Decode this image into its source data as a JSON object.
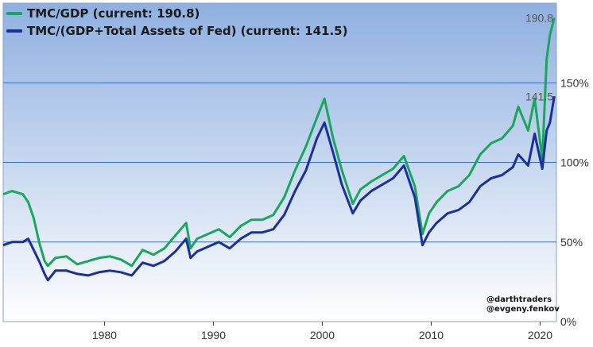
{
  "chart_data": {
    "type": "line",
    "title": "",
    "xlabel": "",
    "ylabel": "",
    "xlim": [
      1970.7,
      2021.5
    ],
    "ylim": [
      0,
      200
    ],
    "x_ticks": [
      1980,
      1990,
      2000,
      2010,
      2020
    ],
    "y_ticks": [
      {
        "value": 0,
        "label": "0%"
      },
      {
        "value": 50,
        "label": "50%"
      },
      {
        "value": 100,
        "label": "100%"
      },
      {
        "value": 150,
        "label": "150%"
      }
    ],
    "grid": "horizontal",
    "legend_position": "top-left",
    "background_gradient": [
      "#8fb0e0",
      "#ffffff"
    ],
    "series": [
      {
        "name": "TMC/GDP (current: 190.8)",
        "color": "#1aa65c",
        "end_label": "190.8",
        "x": [
          1970.7,
          1971.5,
          1972.5,
          1973.0,
          1973.5,
          1974.0,
          1974.5,
          1974.8,
          1975.5,
          1976.5,
          1977.5,
          1978.5,
          1979.5,
          1980.5,
          1981.5,
          1982.5,
          1983.5,
          1984.5,
          1985.5,
          1986.5,
          1987.5,
          1987.9,
          1988.5,
          1989.5,
          1990.5,
          1991.5,
          1992.5,
          1993.5,
          1994.5,
          1995.5,
          1996.5,
          1997.5,
          1998.5,
          1999.5,
          2000.2,
          2001.0,
          2001.8,
          2002.8,
          2003.5,
          2004.5,
          2005.5,
          2006.5,
          2007.5,
          2008.5,
          2009.2,
          2009.8,
          2010.5,
          2011.5,
          2012.5,
          2013.5,
          2014.5,
          2015.5,
          2016.5,
          2017.5,
          2018.0,
          2018.9,
          2019.5,
          2020.2,
          2020.6,
          2020.9,
          2021.3
        ],
        "values": [
          80,
          82,
          80,
          75,
          65,
          50,
          38,
          35,
          40,
          41,
          36,
          38,
          40,
          41,
          39,
          35,
          45,
          42,
          46,
          54,
          62,
          46,
          52,
          55,
          58,
          53,
          60,
          64,
          64,
          67,
          78,
          95,
          110,
          128,
          140,
          115,
          95,
          74,
          83,
          88,
          92,
          96,
          104,
          85,
          55,
          68,
          75,
          82,
          85,
          92,
          105,
          112,
          115,
          123,
          135,
          120,
          140,
          102,
          165,
          180,
          190.8
        ]
      },
      {
        "name": "TMC/(GDP+Total Assets of Fed) (current: 141.5)",
        "color": "#1a2fa0",
        "end_label": "141.5",
        "x": [
          1970.7,
          1971.5,
          1972.5,
          1973.0,
          1973.5,
          1974.0,
          1974.5,
          1974.8,
          1975.5,
          1976.5,
          1977.5,
          1978.5,
          1979.5,
          1980.5,
          1981.5,
          1982.5,
          1983.5,
          1984.5,
          1985.5,
          1986.5,
          1987.5,
          1987.9,
          1988.5,
          1989.5,
          1990.5,
          1991.5,
          1992.5,
          1993.5,
          1994.5,
          1995.5,
          1996.5,
          1997.5,
          1998.5,
          1999.5,
          2000.2,
          2001.0,
          2001.8,
          2002.8,
          2003.5,
          2004.5,
          2005.5,
          2006.5,
          2007.5,
          2008.5,
          2009.2,
          2009.8,
          2010.5,
          2011.5,
          2012.5,
          2013.5,
          2014.5,
          2015.5,
          2016.5,
          2017.5,
          2018.0,
          2018.9,
          2019.5,
          2020.2,
          2020.6,
          2020.9,
          2021.3
        ],
        "values": [
          48,
          50,
          50,
          52,
          45,
          38,
          30,
          26,
          32,
          32,
          30,
          29,
          31,
          32,
          31,
          29,
          37,
          35,
          38,
          44,
          52,
          40,
          44,
          47,
          50,
          46,
          52,
          56,
          56,
          58,
          67,
          82,
          95,
          115,
          125,
          106,
          86,
          68,
          76,
          82,
          86,
          90,
          98,
          78,
          48,
          56,
          62,
          68,
          70,
          75,
          85,
          90,
          92,
          97,
          105,
          98,
          118,
          96,
          120,
          125,
          141.5
        ]
      }
    ]
  },
  "credits": {
    "line1": "@darthtraders",
    "line2": "@evgeny.fenkov"
  }
}
